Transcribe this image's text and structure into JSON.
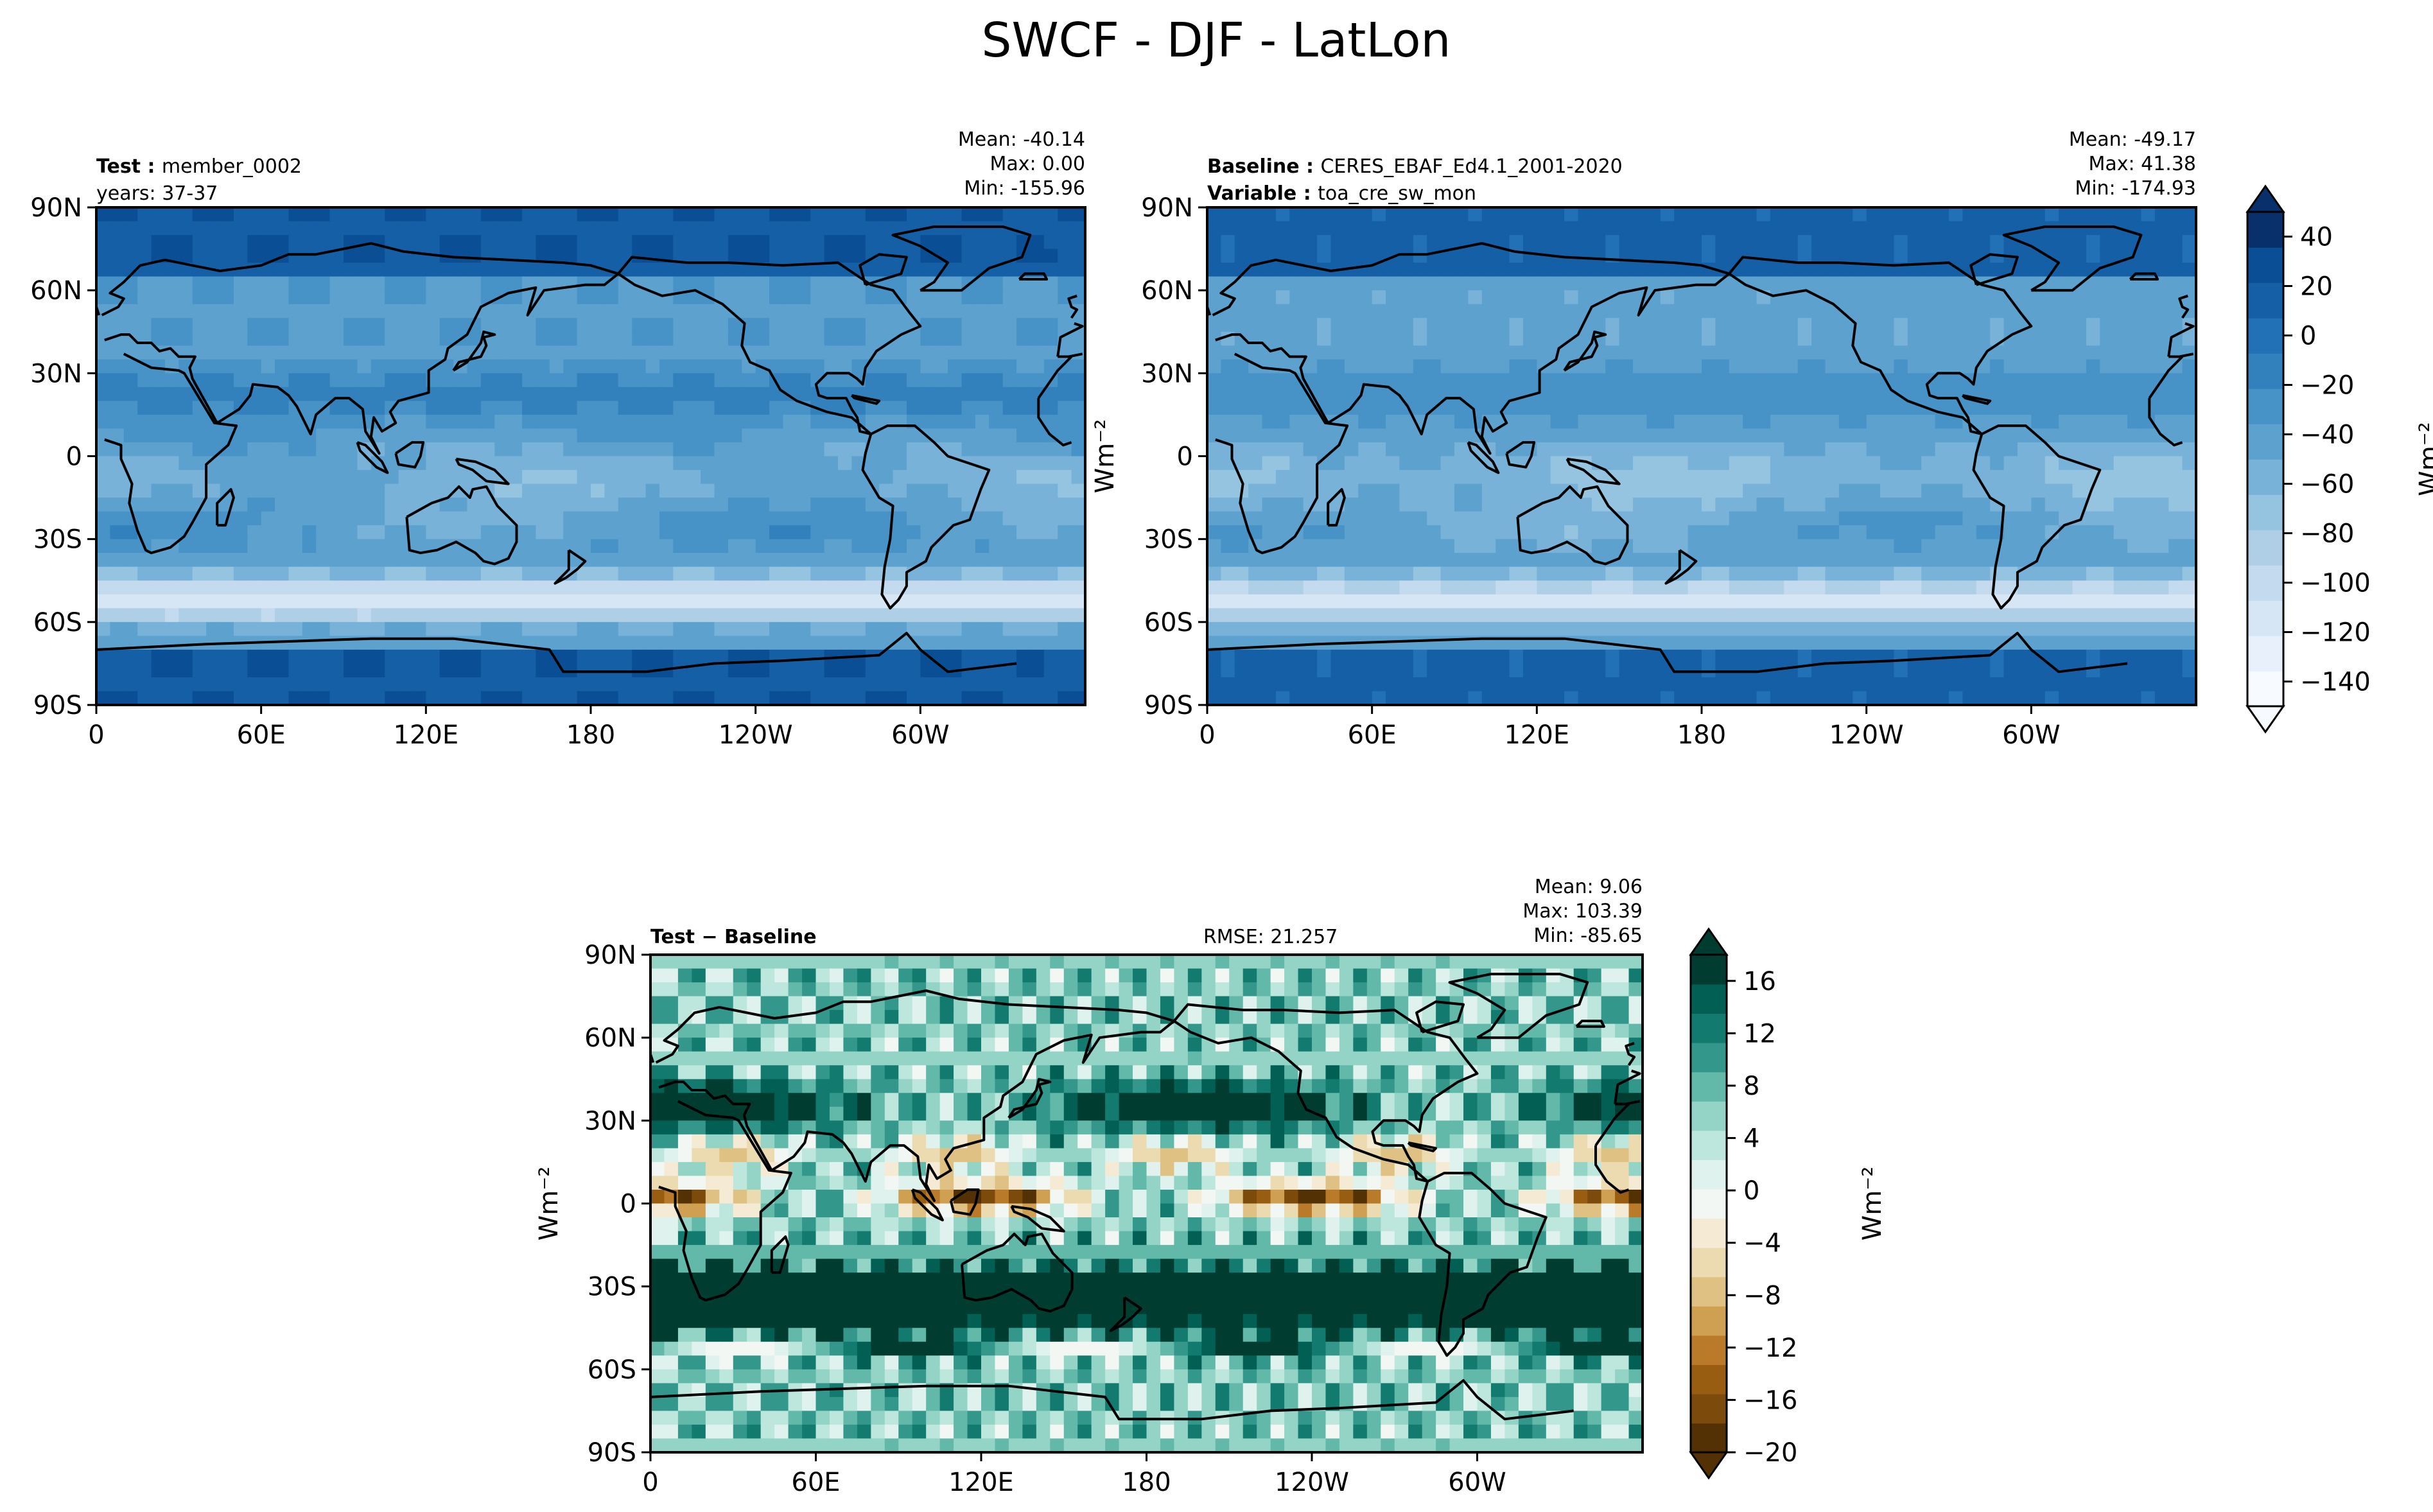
{
  "title": "SWCF - DJF - LatLon",
  "colors": {
    "seq": [
      "#f7fbff",
      "#e8f1fb",
      "#d7e6f5",
      "#c4daee",
      "#aecfe6",
      "#94c4df",
      "#78b2d8",
      "#5da1cf",
      "#4792c6",
      "#3281bd",
      "#2270b5",
      "#145fa6",
      "#0a4f95",
      "#08306b"
    ],
    "div": [
      "#543005",
      "#7c4a0a",
      "#995d12",
      "#b97a2a",
      "#cfa052",
      "#dfc183",
      "#ecdab0",
      "#f5ebd4",
      "#f3f7f4",
      "#dff2ee",
      "#bde6dc",
      "#93d4c6",
      "#62b8a9",
      "#33978b",
      "#127a6e",
      "#015f53",
      "#003c30"
    ],
    "land_outline": "#000000"
  },
  "chart_data": [
    {
      "type": "heatmap",
      "panel": "test",
      "header_left": [
        {
          "label": "Test",
          "value": "member_0002"
        },
        {
          "label": "",
          "value": "years: 37-37"
        }
      ],
      "stats": [
        "Mean: -40.14",
        "Max:  0.00",
        "Min: -155.96"
      ],
      "stats_values": {
        "mean": -40.14,
        "max": 0.0,
        "min": -155.96
      },
      "xticks": [
        "0",
        "60E",
        "120E",
        "180",
        "120W",
        "60W"
      ],
      "yticks": [
        "90N",
        "60N",
        "30N",
        "0",
        "30S",
        "60S",
        "90S"
      ],
      "xlim": [
        0,
        360
      ],
      "ylim": [
        -90,
        90
      ],
      "ylabel": "Wm⁻²"
    },
    {
      "type": "heatmap",
      "panel": "baseline",
      "header_left": [
        {
          "label": "Baseline",
          "value": "CERES_EBAF_Ed4.1_2001-2020"
        },
        {
          "label": "Variable",
          "value": "toa_cre_sw_mon"
        }
      ],
      "stats": [
        "Mean: -49.17",
        "Max: 41.38",
        "Min: -174.93"
      ],
      "stats_values": {
        "mean": -49.17,
        "max": 41.38,
        "min": -174.93
      },
      "xticks": [
        "0",
        "60E",
        "120E",
        "180",
        "120W",
        "60W"
      ],
      "yticks": [
        "90N",
        "60N",
        "30N",
        "0",
        "30S",
        "60S",
        "90S"
      ],
      "xlim": [
        0,
        360
      ],
      "ylim": [
        -90,
        90
      ]
    },
    {
      "type": "heatmap",
      "panel": "diff",
      "header_left": [
        {
          "label": "Test − Baseline",
          "value": ""
        }
      ],
      "rmse": "RMSE: 21.257",
      "stats": [
        "Mean:  9.06",
        "Max: 103.39",
        "Min: -85.65"
      ],
      "stats_values": {
        "mean": 9.06,
        "max": 103.39,
        "min": -85.65
      },
      "xticks": [
        "0",
        "60E",
        "120E",
        "180",
        "120W",
        "60W"
      ],
      "yticks": [
        "90N",
        "60N",
        "30N",
        "0",
        "30S",
        "60S",
        "90S"
      ],
      "xlim": [
        0,
        360
      ],
      "ylim": [
        -90,
        90
      ],
      "ylabel": "Wm⁻²"
    }
  ],
  "colorbars": {
    "top": {
      "ticks": [
        "40",
        "20",
        "0",
        "−20",
        "−40",
        "−60",
        "−80",
        "−100",
        "−120",
        "−140"
      ],
      "tick_values": [
        40,
        20,
        0,
        -20,
        -40,
        -60,
        -80,
        -100,
        -120,
        -140
      ],
      "range": [
        -150,
        50
      ],
      "label": "Wm⁻²"
    },
    "bottom": {
      "ticks": [
        "16",
        "12",
        "8",
        "4",
        "0",
        "−4",
        "−8",
        "−12",
        "−16",
        "−20"
      ],
      "tick_values": [
        16,
        12,
        8,
        4,
        0,
        -4,
        -8,
        -12,
        -16,
        -20
      ],
      "range": [
        -20,
        18
      ],
      "label": "Wm⁻²"
    }
  }
}
